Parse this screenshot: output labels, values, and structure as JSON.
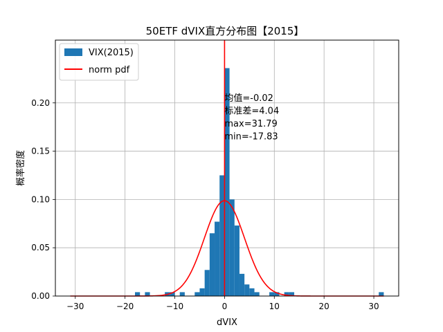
{
  "chart_data": {
    "type": "bar",
    "title": "50ETF dVIX直方分布图【2015】",
    "xlabel": "dVIX",
    "ylabel": "概率密度",
    "xlim": [
      -34,
      35
    ],
    "ylim": [
      0,
      0.265
    ],
    "xticks": [
      -30,
      -20,
      -10,
      0,
      10,
      20,
      30
    ],
    "xtick_labels": [
      "−30",
      "−20",
      "−10",
      "0",
      "10",
      "20",
      "30"
    ],
    "yticks": [
      0.0,
      0.05,
      0.1,
      0.15,
      0.2
    ],
    "ytick_labels": [
      "0.00",
      "0.05",
      "0.10",
      "0.15",
      "0.20"
    ],
    "grid": true,
    "legend": {
      "placement": "top-left",
      "entries": [
        "VIX(2015)",
        "norm pdf"
      ]
    },
    "histogram": {
      "name": "VIX(2015)",
      "color": "#1f77b4",
      "bin_width": 1.0,
      "bins": [
        {
          "x0": -18,
          "x1": -17,
          "value": 0.004
        },
        {
          "x0": -16,
          "x1": -15,
          "value": 0.004
        },
        {
          "x0": -12,
          "x1": -11,
          "value": 0.004
        },
        {
          "x0": -11,
          "x1": -10,
          "value": 0.004
        },
        {
          "x0": -9,
          "x1": -8,
          "value": 0.004
        },
        {
          "x0": -6,
          "x1": -5,
          "value": 0.004
        },
        {
          "x0": -5,
          "x1": -4,
          "value": 0.008
        },
        {
          "x0": -4,
          "x1": -3,
          "value": 0.027
        },
        {
          "x0": -3,
          "x1": -2,
          "value": 0.065
        },
        {
          "x0": -2,
          "x1": -1,
          "value": 0.077
        },
        {
          "x0": -1,
          "x1": 0,
          "value": 0.125
        },
        {
          "x0": 0,
          "x1": 1,
          "value": 0.236
        },
        {
          "x0": 1,
          "x1": 2,
          "value": 0.1
        },
        {
          "x0": 2,
          "x1": 3,
          "value": 0.073
        },
        {
          "x0": 3,
          "x1": 4,
          "value": 0.023
        },
        {
          "x0": 4,
          "x1": 5,
          "value": 0.012
        },
        {
          "x0": 5,
          "x1": 6,
          "value": 0.008
        },
        {
          "x0": 6,
          "x1": 7,
          "value": 0.004
        },
        {
          "x0": 9,
          "x1": 10,
          "value": 0.004
        },
        {
          "x0": 10,
          "x1": 11,
          "value": 0.004
        },
        {
          "x0": 12,
          "x1": 13,
          "value": 0.004
        },
        {
          "x0": 13,
          "x1": 14,
          "value": 0.004
        },
        {
          "x0": 31,
          "x1": 32,
          "value": 0.004
        }
      ]
    },
    "normal_curve": {
      "name": "norm pdf",
      "color": "#ff0000",
      "mean": -0.02,
      "std": 4.04,
      "x_range": [
        -31,
        32
      ]
    },
    "vertical_line": {
      "x": 0,
      "color": "#ff0000"
    },
    "annotation": {
      "x": 0,
      "y_top": 0.205,
      "lines": [
        "均值=-0.02",
        "标准差=4.04",
        "max=31.79",
        "min=-17.83"
      ]
    }
  }
}
